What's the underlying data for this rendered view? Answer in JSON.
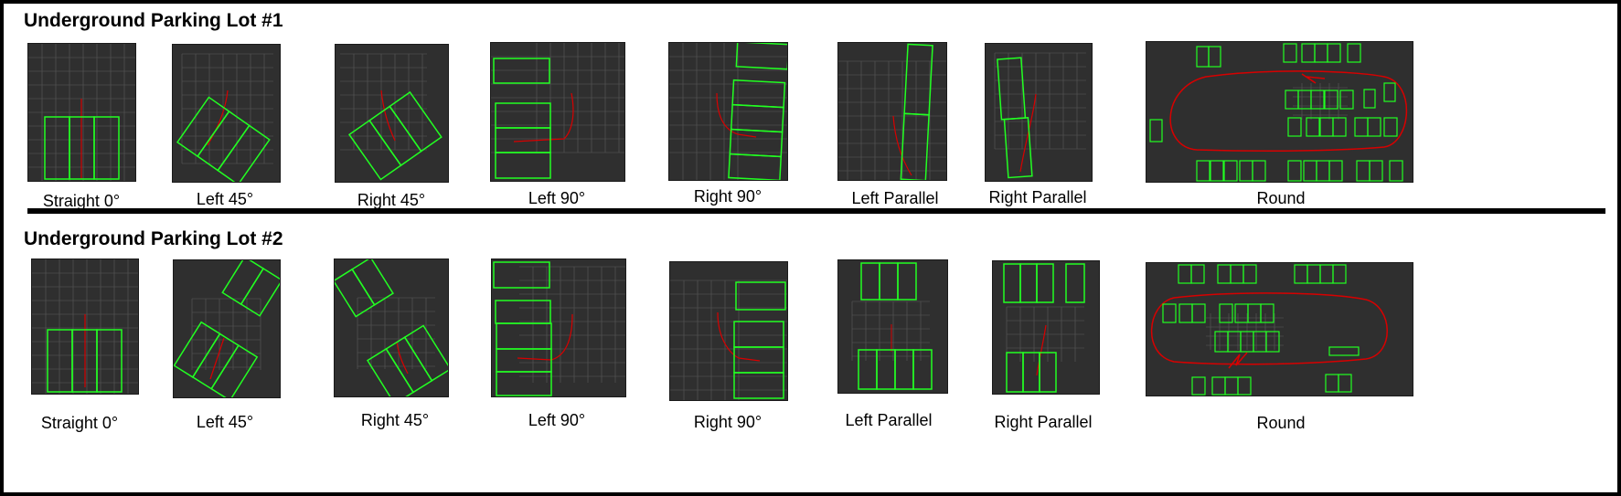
{
  "sections": [
    {
      "title": "Underground Parking Lot #1",
      "panels": [
        {
          "id": "straight-0",
          "caption": "Straight 0°"
        },
        {
          "id": "left-45",
          "caption": "Left 45°"
        },
        {
          "id": "right-45",
          "caption": "Right 45°"
        },
        {
          "id": "left-90",
          "caption": "Left 90°"
        },
        {
          "id": "right-90",
          "caption": "Right 90°"
        },
        {
          "id": "left-parallel",
          "caption": "Left Parallel"
        },
        {
          "id": "right-parallel",
          "caption": "Right Parallel"
        },
        {
          "id": "round",
          "caption": "Round"
        }
      ]
    },
    {
      "title": "Underground Parking Lot #2",
      "panels": [
        {
          "id": "straight-0",
          "caption": "Straight 0°"
        },
        {
          "id": "left-45",
          "caption": "Left 45°"
        },
        {
          "id": "right-45",
          "caption": "Right 45°"
        },
        {
          "id": "left-90",
          "caption": "Left 90°"
        },
        {
          "id": "right-90",
          "caption": "Right 90°"
        },
        {
          "id": "left-parallel",
          "caption": "Left Parallel"
        },
        {
          "id": "right-parallel",
          "caption": "Right Parallel"
        },
        {
          "id": "round",
          "caption": "Round"
        }
      ]
    }
  ],
  "colors": {
    "panel_background": "#2f2f2f",
    "parking_slot": "#22ff22",
    "trajectory": "#d80000",
    "grid": "#5a5a5a"
  }
}
